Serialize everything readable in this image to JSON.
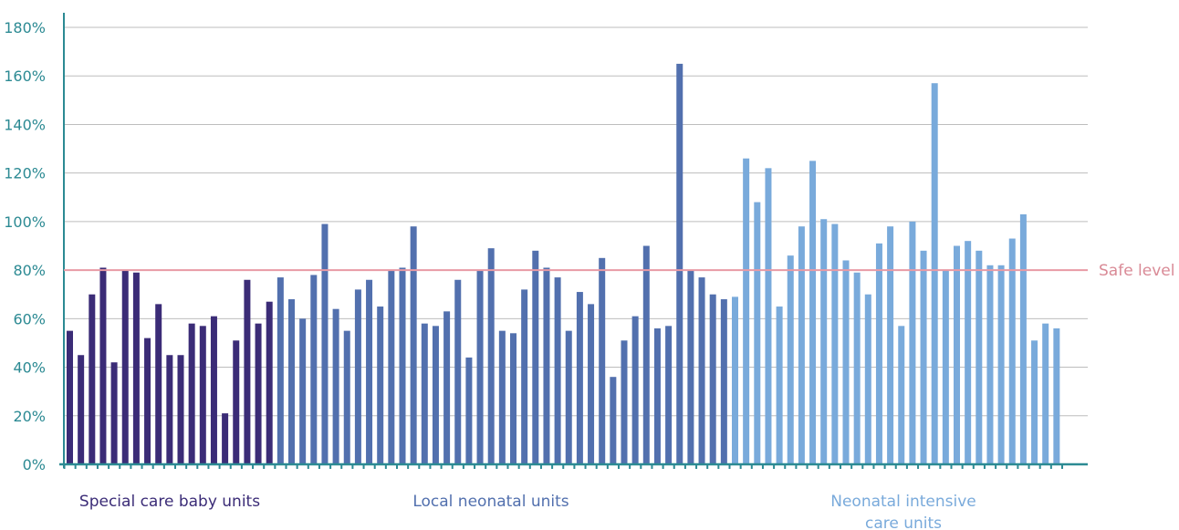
{
  "chart_data": {
    "type": "bar",
    "ylim": [
      0,
      180
    ],
    "ytick_labels": [
      "0%",
      "20%",
      "40%",
      "60%",
      "80%",
      "100%",
      "120%",
      "140%",
      "160%",
      "180%"
    ],
    "ytick_values": [
      0,
      20,
      40,
      60,
      80,
      100,
      120,
      140,
      160,
      180
    ],
    "grid": true,
    "reference_line": {
      "value": 80,
      "label": "Safe level",
      "color": "#e89aa5"
    },
    "groups": [
      {
        "name": "Special care baby units",
        "color": "#3b2c77",
        "label_color": "#3b2c77",
        "values": [
          55,
          45,
          70,
          81,
          42,
          80,
          79,
          52,
          66,
          45,
          45,
          58,
          57,
          61,
          21,
          51,
          76,
          58,
          67
        ]
      },
      {
        "name": "Local neonatal units",
        "color": "#5270ae",
        "label_color": "#5270ae",
        "values": [
          77,
          68,
          60,
          78,
          99,
          64,
          55,
          72,
          76,
          65,
          80,
          81,
          98,
          58,
          57,
          63,
          76,
          44,
          80,
          89,
          55,
          54,
          72,
          88,
          81,
          77,
          55,
          71,
          66,
          85,
          36,
          51,
          61,
          90,
          56,
          57,
          165,
          80,
          77,
          70,
          68
        ]
      },
      {
        "name": "Neonatal intensive care units",
        "color": "#79aadb",
        "label_color": "#79aadb",
        "values": [
          69,
          126,
          108,
          122,
          65,
          86,
          98,
          125,
          101,
          99,
          84,
          79,
          70,
          91,
          98,
          57,
          100,
          88,
          157,
          80,
          90,
          92,
          88,
          82,
          82,
          93,
          103,
          51,
          58,
          56
        ]
      }
    ]
  },
  "group_label_lines": [
    [
      "Special care baby units"
    ],
    [
      "Local neonatal units"
    ],
    [
      "Neonatal intensive",
      "care units"
    ]
  ]
}
